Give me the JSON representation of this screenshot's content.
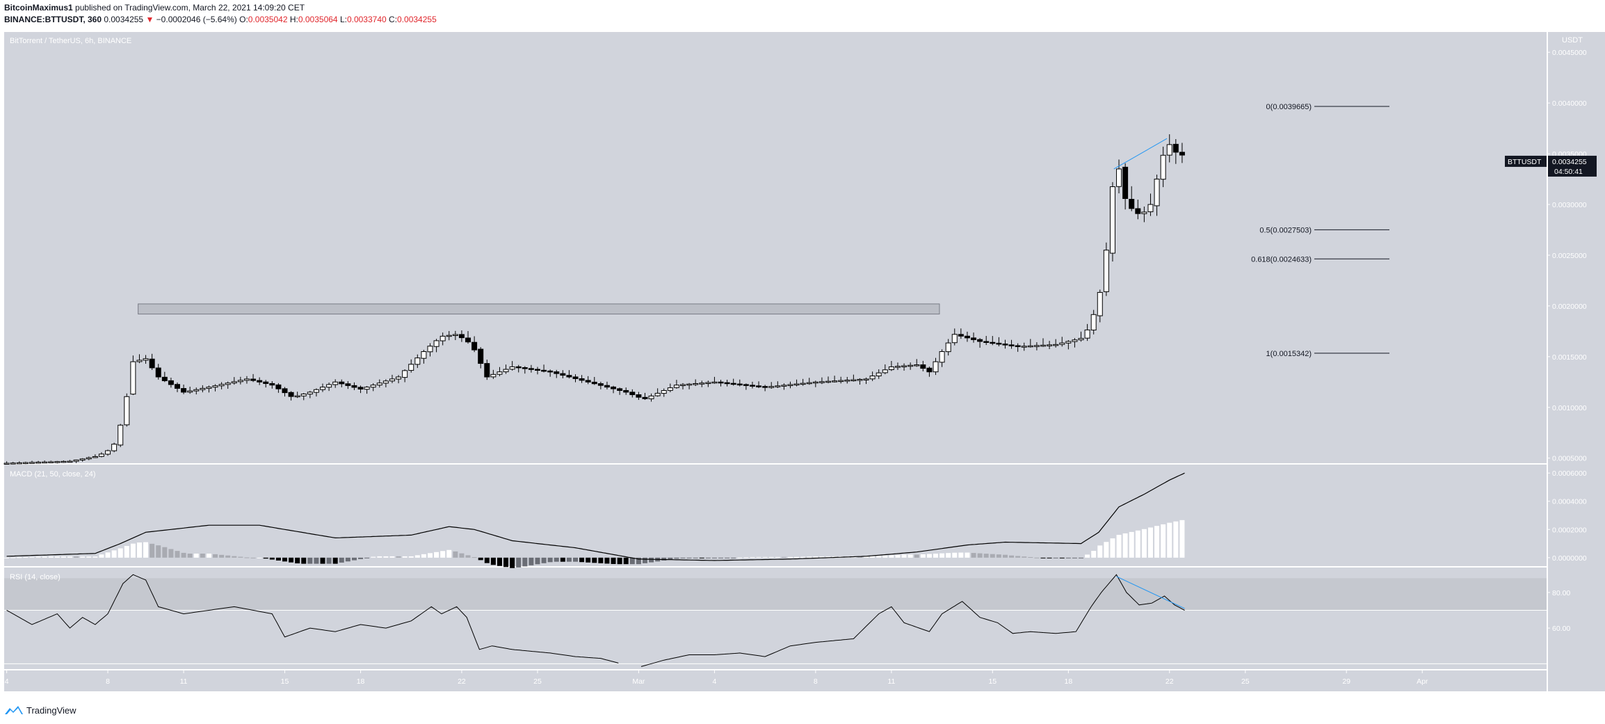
{
  "header": {
    "author": "BitcoinMaximus1",
    "published_text": "published on TradingView.com, March 22, 2021 14:09:20 CET",
    "symbol": "BINANCE:BTTUSDT, 360",
    "last_price": "0.0034255",
    "change": "−0.0002046 (−5.64%)",
    "o_label": "O:",
    "o_value": "0.0035042",
    "h_label": "H:",
    "h_value": "0.0035064",
    "l_label": "L:",
    "l_value": "0.0033740",
    "c_label": "C:",
    "c_value": "0.0034255"
  },
  "footer": {
    "brand": "TradingView"
  },
  "colors": {
    "panel_bg": "#d1d4dc",
    "up": "#ffffff",
    "down": "#000000",
    "fib_line": "#131722",
    "trend_line": "#2196f3",
    "negative": "#e0262c",
    "label_bg": "#131722"
  },
  "chart_data": [
    {
      "type": "candlestick",
      "title": "BitTorrent / TetherUS, 6h, BINANCE",
      "ylabel": "USDT",
      "ylim": [
        0.00045,
        0.0047
      ],
      "y_ticks": [
        "0.0005000",
        "0.0010000",
        "0.0015000",
        "0.0020000",
        "0.0025000",
        "0.0030000",
        "0.0035000",
        "0.0040000",
        "0.0045000"
      ],
      "x_tick_labels": [
        "4",
        "8",
        "11",
        "15",
        "18",
        "22",
        "25",
        "Mar",
        "4",
        "8",
        "11",
        "15",
        "18",
        "22",
        "25",
        "29",
        "Apr"
      ],
      "x_tick_days": [
        4,
        8,
        11,
        15,
        18,
        22,
        25,
        29,
        32,
        36,
        39,
        43,
        46,
        50,
        53,
        57,
        60
      ],
      "x_axis_note": "days counted from Feb 1, 2021 (Mar 1 = day 29)",
      "price_label": {
        "symbol": "BTTUSDT",
        "value": "0.0034255",
        "countdown": "04:50:41"
      },
      "resistance_zone": {
        "from_day": 9.2,
        "to_day": 40.9,
        "low": 0.00192,
        "high": 0.00202
      },
      "fib_levels": [
        {
          "label": "0(0.0039665)",
          "value": 0.0039665
        },
        {
          "label": "0.5(0.0027503)",
          "value": 0.0027503
        },
        {
          "label": "0.618(0.0024633)",
          "value": 0.0024633
        },
        {
          "label": "1(0.0015342)",
          "value": 0.0015342
        }
      ],
      "trendline": {
        "from": [
          47.8,
          0.00335
        ],
        "to": [
          49.9,
          0.00365
        ]
      },
      "anchors": [
        [
          4.0,
          0.00045
        ],
        [
          6.5,
          0.00047
        ],
        [
          7.6,
          0.00052
        ],
        [
          8.2,
          0.0006
        ],
        [
          8.6,
          0.0009
        ],
        [
          9.0,
          0.00145
        ],
        [
          9.5,
          0.00148
        ],
        [
          10.0,
          0.0013
        ],
        [
          11.0,
          0.00115
        ],
        [
          12.0,
          0.0012
        ],
        [
          13.5,
          0.00128
        ],
        [
          14.5,
          0.00122
        ],
        [
          15.3,
          0.0011
        ],
        [
          16.0,
          0.00115
        ],
        [
          17.0,
          0.00125
        ],
        [
          18.0,
          0.00118
        ],
        [
          19.5,
          0.0013
        ],
        [
          20.5,
          0.00155
        ],
        [
          21.2,
          0.0017
        ],
        [
          21.8,
          0.00172
        ],
        [
          22.4,
          0.00162
        ],
        [
          23.0,
          0.0013
        ],
        [
          24.0,
          0.0014
        ],
        [
          25.5,
          0.00135
        ],
        [
          27.0,
          0.00125
        ],
        [
          28.5,
          0.00115
        ],
        [
          29.2,
          0.00108
        ],
        [
          30.5,
          0.00122
        ],
        [
          32.0,
          0.00125
        ],
        [
          34.0,
          0.0012
        ],
        [
          36.0,
          0.00125
        ],
        [
          38.0,
          0.00128
        ],
        [
          39.0,
          0.0014
        ],
        [
          40.0,
          0.00142
        ],
        [
          40.5,
          0.00135
        ],
        [
          41.0,
          0.00155
        ],
        [
          41.5,
          0.00172
        ],
        [
          42.5,
          0.00165
        ],
        [
          44.0,
          0.0016
        ],
        [
          45.5,
          0.00162
        ],
        [
          46.5,
          0.00168
        ],
        [
          46.8,
          0.00178
        ],
        [
          47.2,
          0.00205
        ],
        [
          47.5,
          0.00255
        ],
        [
          47.8,
          0.0033
        ],
        [
          48.0,
          0.00335
        ],
        [
          48.3,
          0.003
        ],
        [
          48.8,
          0.0029
        ],
        [
          49.2,
          0.00295
        ],
        [
          49.6,
          0.00335
        ],
        [
          49.9,
          0.00362
        ],
        [
          50.3,
          0.0035
        ],
        [
          50.6,
          0.00348
        ]
      ]
    },
    {
      "type": "histogram+line",
      "title": "MACD (21, 50, close, 24)",
      "ylim": [
        -6e-05,
        0.00066
      ],
      "y_ticks": [
        "0.0000000",
        "0.0002000",
        "0.0004000",
        "0.0006000"
      ],
      "anchors": [
        [
          4.0,
          1e-05
        ],
        [
          7.5,
          3e-05
        ],
        [
          8.5,
          0.0001
        ],
        [
          9.5,
          0.00018
        ],
        [
          12.0,
          0.00023
        ],
        [
          14.0,
          0.00023
        ],
        [
          17.0,
          0.00014
        ],
        [
          20.0,
          0.00016
        ],
        [
          21.5,
          0.00022
        ],
        [
          22.5,
          0.0002
        ],
        [
          24.0,
          0.00012
        ],
        [
          26.5,
          7e-05
        ],
        [
          29.0,
          -1e-05
        ],
        [
          32.0,
          -2e-05
        ],
        [
          35.0,
          -1e-05
        ],
        [
          38.0,
          1e-05
        ],
        [
          40.0,
          4e-05
        ],
        [
          42.0,
          9e-05
        ],
        [
          43.5,
          0.00011
        ],
        [
          46.5,
          0.0001
        ],
        [
          47.2,
          0.00018
        ],
        [
          48.0,
          0.00036
        ],
        [
          49.0,
          0.00045
        ],
        [
          50.0,
          0.00055
        ],
        [
          50.6,
          0.0006
        ]
      ]
    },
    {
      "type": "line",
      "title": "RSI (14, close)",
      "ylim": [
        37,
        94
      ],
      "y_ticks": [
        "60.00",
        "80.00"
      ],
      "band": [
        70,
        88
      ],
      "anchors": [
        [
          4.0,
          70
        ],
        [
          5.0,
          62
        ],
        [
          6.0,
          68
        ],
        [
          6.5,
          60
        ],
        [
          7.0,
          66
        ],
        [
          7.5,
          62
        ],
        [
          8.0,
          68
        ],
        [
          8.6,
          85
        ],
        [
          9.0,
          90
        ],
        [
          9.5,
          87
        ],
        [
          10.0,
          72
        ],
        [
          11.0,
          68
        ],
        [
          12.0,
          70
        ],
        [
          13.0,
          72
        ],
        [
          14.5,
          68
        ],
        [
          15.0,
          55
        ],
        [
          16.0,
          60
        ],
        [
          17.0,
          58
        ],
        [
          18.0,
          62
        ],
        [
          19.0,
          60
        ],
        [
          20.0,
          64
        ],
        [
          20.8,
          72
        ],
        [
          21.2,
          68
        ],
        [
          21.8,
          72
        ],
        [
          22.2,
          66
        ],
        [
          22.7,
          48
        ],
        [
          23.2,
          50
        ],
        [
          24.0,
          48
        ],
        [
          25.5,
          46
        ],
        [
          26.5,
          44
        ],
        [
          27.5,
          43
        ],
        [
          28.3,
          40
        ],
        [
          29.0,
          38
        ],
        [
          30.0,
          42
        ],
        [
          31.0,
          45
        ],
        [
          32.0,
          45
        ],
        [
          33.0,
          46
        ],
        [
          34.0,
          44
        ],
        [
          35.0,
          50
        ],
        [
          36.0,
          52
        ],
        [
          37.5,
          54
        ],
        [
          38.5,
          68
        ],
        [
          39.0,
          72
        ],
        [
          39.5,
          63
        ],
        [
          40.5,
          58
        ],
        [
          41.0,
          68
        ],
        [
          41.8,
          75
        ],
        [
          42.5,
          66
        ],
        [
          43.2,
          63
        ],
        [
          43.8,
          57
        ],
        [
          44.5,
          58
        ],
        [
          45.5,
          57
        ],
        [
          46.3,
          58
        ],
        [
          46.9,
          72
        ],
        [
          47.3,
          80
        ],
        [
          47.9,
          90
        ],
        [
          48.3,
          80
        ],
        [
          48.8,
          73
        ],
        [
          49.3,
          74
        ],
        [
          49.8,
          78
        ],
        [
          50.2,
          73
        ],
        [
          50.6,
          70
        ]
      ],
      "trendline": {
        "from": [
          47.9,
          89
        ],
        "to": [
          50.6,
          71
        ]
      }
    }
  ]
}
